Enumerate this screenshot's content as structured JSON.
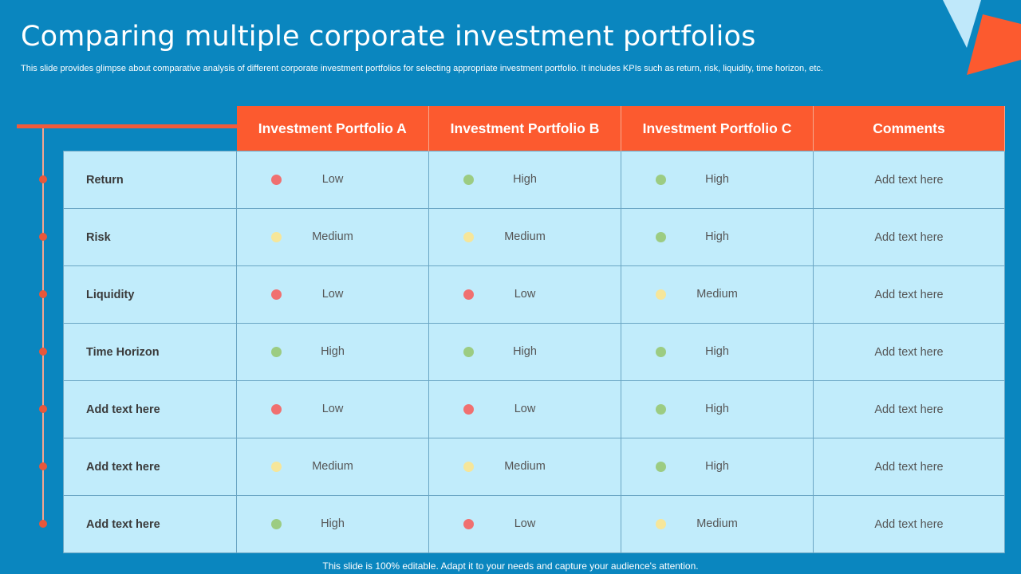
{
  "title": "Comparing multiple corporate investment portfolios",
  "subtitle": "This slide provides glimpse about comparative analysis of different corporate investment portfolios for selecting appropriate investment portfolio. It includes KPIs such as return, risk, liquidity, time horizon, etc.",
  "colors": {
    "background": "#0a86bf",
    "header": "#fc5a2f",
    "cell": "#c1ecfb",
    "low": "#f07070",
    "medium": "#f6e69a",
    "high": "#9ccc82"
  },
  "table": {
    "headers": [
      "Investment Portfolio A",
      "Investment Portfolio B",
      "Investment Portfolio C",
      "Comments"
    ],
    "rows": [
      {
        "label": "Return",
        "a": "Low",
        "b": "High",
        "c": "High",
        "comment": "Add text here"
      },
      {
        "label": "Risk",
        "a": "Medium",
        "b": "Medium",
        "c": "High",
        "comment": "Add text here"
      },
      {
        "label": "Liquidity",
        "a": "Low",
        "b": "Low",
        "c": "Medium",
        "comment": "Add text here"
      },
      {
        "label": "Time Horizon",
        "a": "High",
        "b": "High",
        "c": "High",
        "comment": "Add text here"
      },
      {
        "label": "Add  text here",
        "a": "Low",
        "b": "Low",
        "c": "High",
        "comment": "Add text here"
      },
      {
        "label": "Add  text here",
        "a": "Medium",
        "b": "Medium",
        "c": "High",
        "comment": "Add text here"
      },
      {
        "label": "Add  text here",
        "a": "High",
        "b": "Low",
        "c": "Medium",
        "comment": "Add text here"
      }
    ]
  },
  "footer": "This slide is 100% editable. Adapt it to your needs and capture your audience's attention."
}
